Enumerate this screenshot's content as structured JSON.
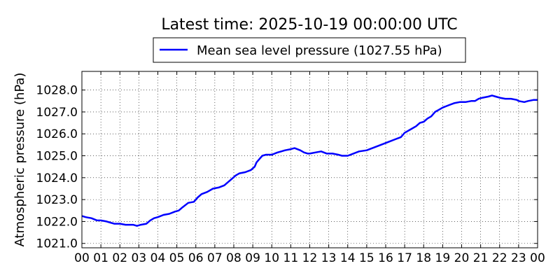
{
  "chart_data": {
    "type": "line",
    "title": "Latest time: 2025-10-19 00:00:00 UTC",
    "ylabel": "Atmospheric pressure (hPa)",
    "xlabel": "",
    "x_tick_labels": [
      "00",
      "01",
      "02",
      "03",
      "04",
      "05",
      "06",
      "07",
      "08",
      "09",
      "10",
      "11",
      "12",
      "13",
      "14",
      "15",
      "16",
      "17",
      "18",
      "19",
      "20",
      "21",
      "22",
      "23",
      "00"
    ],
    "y_ticks": [
      1021.0,
      1022.0,
      1023.0,
      1024.0,
      1025.0,
      1026.0,
      1027.0,
      1028.0
    ],
    "y_tick_labels": [
      "1021.0",
      "1022.0",
      "1023.0",
      "1024.0",
      "1025.0",
      "1026.0",
      "1027.0",
      "1028.0"
    ],
    "xlim": [
      0,
      24
    ],
    "ylim": [
      1020.8,
      1028.85
    ],
    "grid": true,
    "legend_position": "top-center, above plot",
    "series": [
      {
        "name": "Mean sea level pressure (1027.55 hPa)",
        "color": "#0000ff",
        "x": [
          0,
          0.2,
          0.5,
          0.8,
          1.0,
          1.3,
          1.5,
          1.7,
          2.0,
          2.3,
          2.5,
          2.7,
          2.9,
          3.1,
          3.4,
          3.6,
          3.8,
          4.0,
          4.3,
          4.6,
          4.9,
          5.1,
          5.3,
          5.6,
          5.9,
          6.1,
          6.3,
          6.6,
          6.9,
          7.2,
          7.5,
          7.7,
          7.9,
          8.1,
          8.3,
          8.6,
          8.9,
          9.1,
          9.2,
          9.35,
          9.5,
          9.7,
          10.0,
          10.3,
          10.5,
          10.7,
          11.0,
          11.2,
          11.5,
          11.7,
          11.9,
          12.0,
          12.3,
          12.6,
          12.9,
          13.2,
          13.5,
          13.7,
          14.0,
          14.3,
          14.6,
          15.0,
          15.3,
          15.6,
          15.9,
          16.2,
          16.5,
          16.8,
          17.0,
          17.3,
          17.6,
          17.8,
          18.0,
          18.2,
          18.4,
          18.6,
          18.8,
          19.0,
          19.3,
          19.6,
          19.9,
          20.2,
          20.5,
          20.7,
          20.9,
          21.1,
          21.4,
          21.6,
          21.8,
          22.0,
          22.3,
          22.6,
          22.9,
          23.0,
          23.3,
          23.5,
          23.8,
          24.0
        ],
        "y": [
          1022.25,
          1022.2,
          1022.15,
          1022.05,
          1022.05,
          1022.0,
          1021.95,
          1021.9,
          1021.9,
          1021.85,
          1021.85,
          1021.85,
          1021.8,
          1021.85,
          1021.9,
          1022.05,
          1022.15,
          1022.2,
          1022.3,
          1022.35,
          1022.45,
          1022.5,
          1022.65,
          1022.85,
          1022.9,
          1023.1,
          1023.25,
          1023.35,
          1023.5,
          1023.55,
          1023.65,
          1023.8,
          1023.95,
          1024.1,
          1024.2,
          1024.25,
          1024.35,
          1024.5,
          1024.7,
          1024.85,
          1025.0,
          1025.05,
          1025.05,
          1025.15,
          1025.2,
          1025.25,
          1025.3,
          1025.35,
          1025.25,
          1025.15,
          1025.1,
          1025.1,
          1025.15,
          1025.2,
          1025.1,
          1025.1,
          1025.05,
          1025.0,
          1025.0,
          1025.1,
          1025.2,
          1025.25,
          1025.35,
          1025.45,
          1025.55,
          1025.65,
          1025.75,
          1025.85,
          1026.05,
          1026.2,
          1026.35,
          1026.5,
          1026.55,
          1026.7,
          1026.8,
          1027.0,
          1027.1,
          1027.2,
          1027.3,
          1027.4,
          1027.45,
          1027.45,
          1027.5,
          1027.5,
          1027.6,
          1027.65,
          1027.7,
          1027.75,
          1027.7,
          1027.65,
          1027.6,
          1027.6,
          1027.55,
          1027.5,
          1027.45,
          1027.5,
          1027.55,
          1027.55
        ]
      }
    ]
  }
}
